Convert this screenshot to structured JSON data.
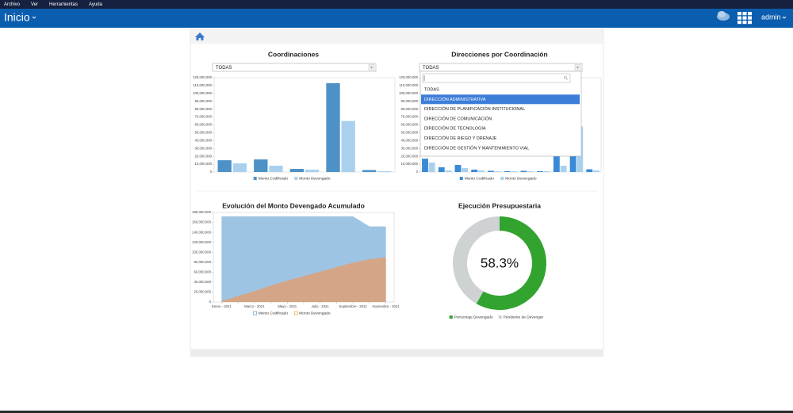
{
  "menu": [
    "Archivo",
    "Ver",
    "Herramientas",
    "Ayuda"
  ],
  "header": {
    "title": "Inicio",
    "user": "admin"
  },
  "dropdown": {
    "options": [
      "TODAS",
      "DIRECCIÓN ADMINISTRATIVA",
      "DIRECCIÓN DE PLANIFICACIÓN INSTITUCIONAL",
      "DIRECCIÓN DE COMUNICACIÓN",
      "DIRECCIÓN DE TECNOLOGÍA",
      "DIRECCIÓN DE RIEGO Y DRENAJE",
      "DIRECCIÓN DE GESTIÓN Y MANTENIMIENTO VIAL"
    ],
    "selected": 1
  },
  "chart_data": [
    {
      "type": "bar",
      "title": "Coordinaciones",
      "filter": "TODAS",
      "categories": [
        null,
        null,
        null,
        null,
        null
      ],
      "series": [
        {
          "name": "Monto Codificado",
          "color": "#4d91c6",
          "values": [
            15000000,
            16000000,
            4000000,
            113000000,
            2500000
          ]
        },
        {
          "name": "Monto Devengado",
          "color": "#a9d1ee",
          "values": [
            11000000,
            8000000,
            3000000,
            65000000,
            1000000
          ]
        }
      ],
      "ylim": [
        0,
        120000000
      ],
      "yticks": [
        0,
        {
          "value": 10000000,
          "label": "10,000,000"
        },
        {
          "value": 20000000,
          "label": "20,000,000"
        },
        {
          "value": 30000000,
          "label": "30,000,000"
        },
        {
          "value": 40000000,
          "label": "40,000,000"
        },
        {
          "value": 50000000,
          "label": "50,000,000"
        },
        {
          "value": 60000000,
          "label": "60,000,000"
        },
        {
          "value": 70000000,
          "label": "70,000,000"
        },
        {
          "value": 80000000,
          "label": "80,000,000"
        },
        {
          "value": 90000000,
          "label": "90,000,000"
        },
        {
          "value": 100000000,
          "label": "100,000,000"
        },
        {
          "value": 110000000,
          "label": "110,000,000"
        },
        {
          "value": 120000000,
          "label": "120,000,000"
        }
      ]
    },
    {
      "type": "bar",
      "title": "Direcciones por Coordinación",
      "filter": "TODAS",
      "categories": [
        null,
        null,
        null,
        null,
        null,
        null,
        null,
        null,
        null,
        null,
        null
      ],
      "series": [
        {
          "name": "Monto Codificado",
          "color": "#3a8ad6",
          "values": [
            17000000,
            6000000,
            9000000,
            3000000,
            1500000,
            1000000,
            1500000,
            1000000,
            20000000,
            22000000,
            3500000
          ]
        },
        {
          "name": "Monto Devengado",
          "color": "#a9d1ee",
          "values": [
            12000000,
            2000000,
            5000000,
            2000000,
            1000000,
            1000000,
            1000000,
            1000000,
            8000000,
            58000000,
            2000000
          ]
        }
      ],
      "ylim": [
        0,
        120000000
      ],
      "yticks": [
        0,
        {
          "value": 10000000,
          "label": "10,000,000"
        },
        {
          "value": 20000000,
          "label": "20,000,000"
        },
        {
          "value": 30000000,
          "label": "30,000,000"
        },
        {
          "value": 40000000,
          "label": "40,000,000"
        },
        {
          "value": 50000000,
          "label": "50,000,000"
        },
        {
          "value": 60000000,
          "label": "60,000,000"
        },
        {
          "value": 70000000,
          "label": "70,000,000"
        },
        {
          "value": 80000000,
          "label": "80,000,000"
        },
        {
          "value": 90000000,
          "label": "90,000,000"
        },
        {
          "value": 100000000,
          "label": "100,000,000"
        },
        {
          "value": 110000000,
          "label": "110,000,000"
        },
        {
          "value": 120000000,
          "label": "120,000,000"
        }
      ]
    },
    {
      "type": "area",
      "title": "Evolución del Monto Devengado Acumulado",
      "categories": [
        "Enero - 2021",
        null,
        "Marzo - 2021",
        null,
        "Mayo - 2021",
        null,
        "Julio - 2021",
        null,
        "Septiembre - 2021",
        null,
        "Noviembre - 2021"
      ],
      "series": [
        {
          "name": "Monto Codificado",
          "color": "#5b9bd0",
          "fill": "#9ec4e3",
          "values": [
            172000000,
            172000000,
            172000000,
            172000000,
            172000000,
            172000000,
            172000000,
            172000000,
            172000000,
            152000000,
            152000000
          ]
        },
        {
          "name": "Monto Devengado",
          "color": "#f0a050",
          "fill": "#d5a587",
          "values": [
            2000000,
            12000000,
            22000000,
            33000000,
            43000000,
            52000000,
            61000000,
            70000000,
            79000000,
            86000000,
            90000000
          ]
        }
      ],
      "ylim": [
        0,
        180000000
      ],
      "yticks": [
        0,
        {
          "value": 20000000,
          "label": "20,000,000"
        },
        {
          "value": 40000000,
          "label": "40,000,000"
        },
        {
          "value": 60000000,
          "label": "60,000,000"
        },
        {
          "value": 80000000,
          "label": "80,000,000"
        },
        {
          "value": 100000000,
          "label": "100,000,000"
        },
        {
          "value": 120000000,
          "label": "120,000,000"
        },
        {
          "value": 140000000,
          "label": "140,000,000"
        },
        {
          "value": 160000000,
          "label": "160,000,000"
        },
        {
          "value": 180000000,
          "label": "180,000,000"
        }
      ]
    },
    {
      "type": "donut",
      "title": "Ejecución Presupuestaria",
      "categories": [
        "Porcentaje Devengado",
        "Pendiente de Devengar"
      ],
      "values": [
        58.3,
        41.7
      ],
      "value_labels": [
        "58.3%",
        null
      ],
      "colors": [
        "#33a32f",
        "#cfd2d3"
      ]
    }
  ]
}
